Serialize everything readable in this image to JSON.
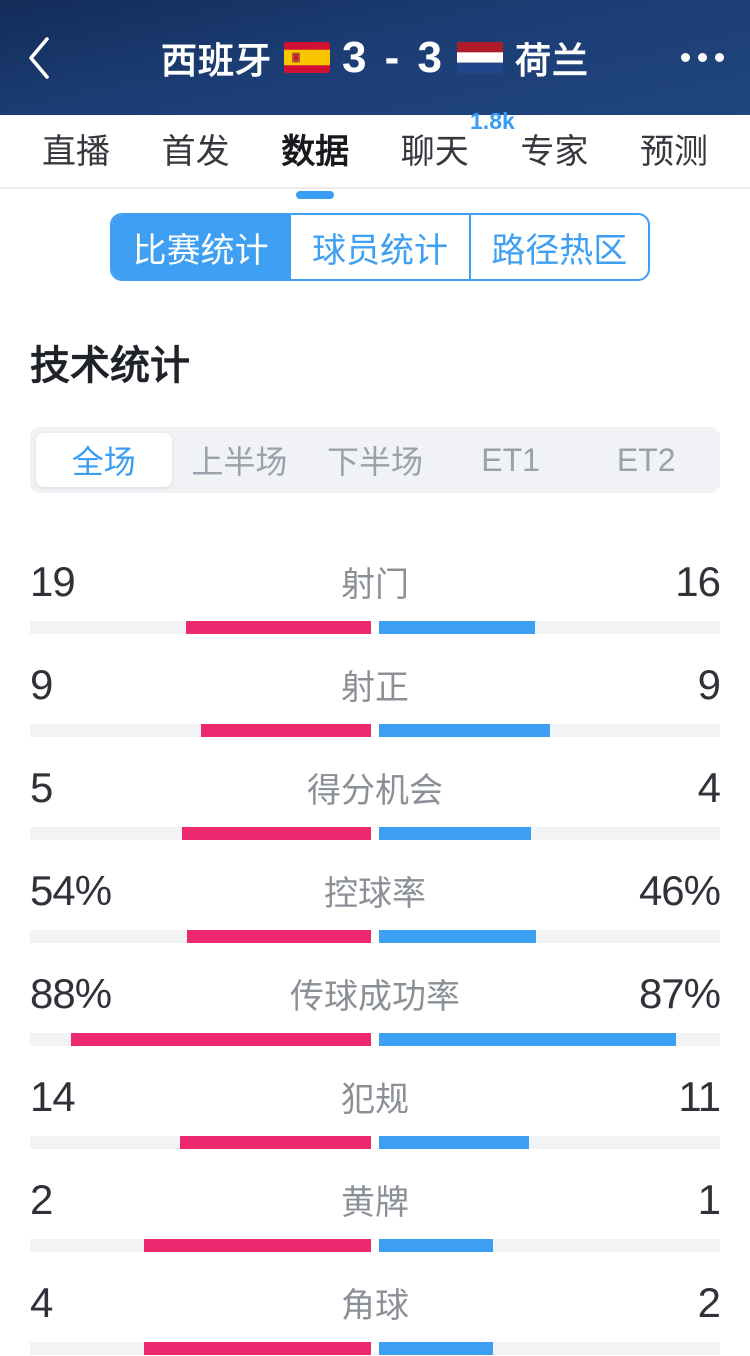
{
  "header": {
    "home_team": "西班牙",
    "away_team": "荷兰",
    "score": "3 - 3",
    "back_icon": "chevron-left-icon",
    "more_icon": "ellipsis-icon",
    "home_flag": "spain-flag",
    "away_flag": "netherlands-flag"
  },
  "nav_tabs": {
    "items": [
      {
        "name": "live",
        "label": "直播",
        "active": false
      },
      {
        "name": "lineup",
        "label": "首发",
        "active": false
      },
      {
        "name": "data",
        "label": "数据",
        "active": true
      },
      {
        "name": "chat",
        "label": "聊天",
        "active": false,
        "badge": "1.8k"
      },
      {
        "name": "expert",
        "label": "专家",
        "active": false
      },
      {
        "name": "prediction",
        "label": "预测",
        "active": false
      }
    ]
  },
  "stats_nav": {
    "segments": [
      {
        "name": "match-stats",
        "label": "比赛统计",
        "selected": true
      },
      {
        "name": "player-stats",
        "label": "球员统计",
        "selected": false
      },
      {
        "name": "path-heatmap",
        "label": "路径热区",
        "selected": false
      }
    ]
  },
  "section_title": "技术统计",
  "period_tabs": {
    "items": [
      {
        "name": "full-match",
        "label": "全场",
        "selected": true
      },
      {
        "name": "first-half",
        "label": "上半场",
        "selected": false
      },
      {
        "name": "second-half",
        "label": "下半场",
        "selected": false
      },
      {
        "name": "et1",
        "label": "ET1",
        "selected": false
      },
      {
        "name": "et2",
        "label": "ET2",
        "selected": false
      }
    ]
  },
  "colors": {
    "home_bar": "#ed286e",
    "away_bar": "#3d9ff2",
    "accent_blue": "#3b9cf3",
    "header_bg": "#1c3d74",
    "track_gray": "#f2f3f5"
  },
  "chart_data": {
    "type": "bar",
    "title": "技术统计",
    "period": "全场",
    "home_team": "西班牙",
    "away_team": "荷兰",
    "score": "3 - 3",
    "legend_position": "none",
    "rows": [
      {
        "name": "shots",
        "label": "射门",
        "home": 19,
        "away": 16,
        "home_display": "19",
        "away_display": "16",
        "unit": "count"
      },
      {
        "name": "shots-on-target",
        "label": "射正",
        "home": 9,
        "away": 9,
        "home_display": "9",
        "away_display": "9",
        "unit": "count"
      },
      {
        "name": "big-chances",
        "label": "得分机会",
        "home": 5,
        "away": 4,
        "home_display": "5",
        "away_display": "4",
        "unit": "count"
      },
      {
        "name": "possession",
        "label": "控球率",
        "home": 54,
        "away": 46,
        "home_display": "54%",
        "away_display": "46%",
        "unit": "percent"
      },
      {
        "name": "pass-success",
        "label": "传球成功率",
        "home": 88,
        "away": 87,
        "home_display": "88%",
        "away_display": "87%",
        "unit": "percent"
      },
      {
        "name": "fouls",
        "label": "犯规",
        "home": 14,
        "away": 11,
        "home_display": "14",
        "away_display": "11",
        "unit": "count"
      },
      {
        "name": "yellow-cards",
        "label": "黄牌",
        "home": 2,
        "away": 1,
        "home_display": "2",
        "away_display": "1",
        "unit": "count"
      },
      {
        "name": "corners",
        "label": "角球",
        "home": 4,
        "away": 2,
        "home_display": "4",
        "away_display": "2",
        "unit": "count"
      }
    ]
  }
}
